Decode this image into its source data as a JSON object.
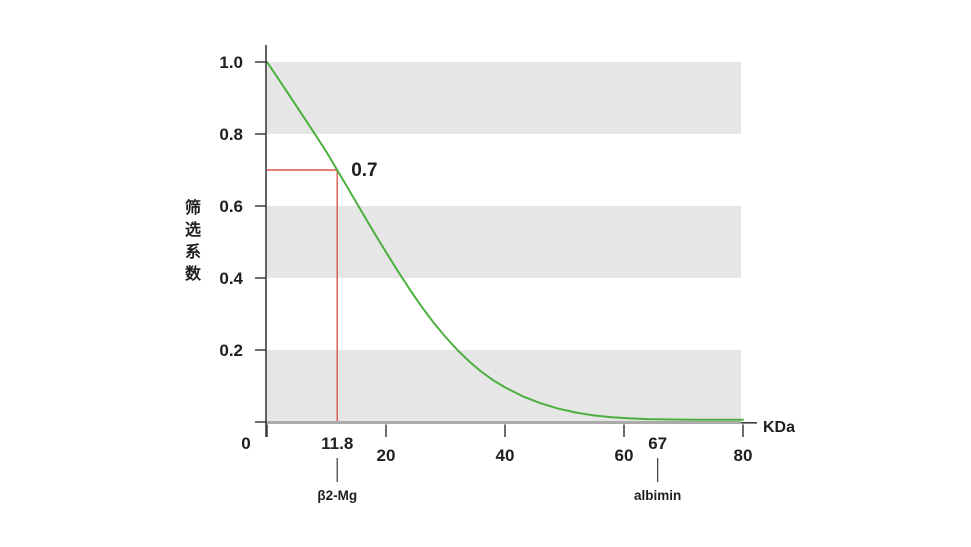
{
  "figure": {
    "background": "#ffffff"
  },
  "chart_data": {
    "type": "line",
    "title": "",
    "xlabel": "KDa",
    "ylabel": "筛选系数",
    "xlim": [
      0,
      80
    ],
    "ylim": [
      0,
      1.0
    ],
    "grid": "off",
    "legend": "none",
    "background_bands": {
      "color": "#e6e6e6",
      "ranges": [
        [
          0.8,
          1.0
        ],
        [
          0.4,
          0.6
        ],
        [
          0.0,
          0.2
        ]
      ]
    },
    "y_axis": {
      "ticks": [
        {
          "value": 1.0,
          "label": "1.0"
        },
        {
          "value": 0.8,
          "label": "0.8"
        },
        {
          "value": 0.6,
          "label": "0.6"
        },
        {
          "value": 0.4,
          "label": "0.4"
        },
        {
          "value": 0.2,
          "label": "0.2"
        },
        {
          "value": 0.0,
          "label": ""
        }
      ]
    },
    "x_axis": {
      "unit_label": "KDa",
      "ticks": [
        {
          "value": 0,
          "label": "0",
          "row": 1,
          "dx": -21,
          "tick": true
        },
        {
          "value": 11.8,
          "label": "11.8",
          "row": 1,
          "dx": 0,
          "tick": false
        },
        {
          "value": 20,
          "label": "20",
          "row": 2,
          "dx": 0,
          "tick": true
        },
        {
          "value": 40,
          "label": "40",
          "row": 2,
          "dx": 0,
          "tick": true
        },
        {
          "value": 60,
          "label": "60",
          "row": 2,
          "dx": 0,
          "tick": true
        },
        {
          "value": 67,
          "label": "67",
          "row": 1,
          "dx": -8,
          "tick": false
        },
        {
          "value": 80,
          "label": "80",
          "row": 2,
          "dx": 0,
          "tick": true
        }
      ]
    },
    "series": [
      {
        "name": "sieving-coefficient-curve",
        "color": "#4caf3f",
        "points": [
          [
            0,
            1.0
          ],
          [
            2,
            0.951
          ],
          [
            4,
            0.901
          ],
          [
            6,
            0.851
          ],
          [
            8,
            0.801
          ],
          [
            10,
            0.75
          ],
          [
            11.8,
            0.7
          ],
          [
            14,
            0.638
          ],
          [
            16,
            0.582
          ],
          [
            18,
            0.526
          ],
          [
            20,
            0.472
          ],
          [
            22,
            0.419
          ],
          [
            24,
            0.368
          ],
          [
            26,
            0.32
          ],
          [
            28,
            0.276
          ],
          [
            30,
            0.236
          ],
          [
            32,
            0.2
          ],
          [
            34,
            0.168
          ],
          [
            36,
            0.14
          ],
          [
            38,
            0.116
          ],
          [
            40,
            0.096
          ],
          [
            43,
            0.071
          ],
          [
            46,
            0.052
          ],
          [
            49,
            0.037
          ],
          [
            52,
            0.026
          ],
          [
            55,
            0.018
          ],
          [
            58,
            0.013
          ],
          [
            61,
            0.01
          ],
          [
            64,
            0.008
          ],
          [
            68,
            0.007
          ],
          [
            72,
            0.006
          ],
          [
            76,
            0.006
          ],
          [
            80,
            0.006
          ]
        ]
      }
    ],
    "reference": {
      "x": 11.8,
      "y": 0.7,
      "label": "0.7",
      "line_color": "#db564b",
      "text_color": "#1c4f9c"
    },
    "markers": [
      {
        "x": 11.8,
        "label": "β2-Mg",
        "dx": 0
      },
      {
        "x": 67,
        "label": "albimin",
        "dx": -8
      }
    ],
    "style": {
      "band": "#e6e6e6",
      "baseline": "#ababab",
      "axis": "#3a3a3a",
      "text": "#1f1f1f",
      "curve": "#4caf3f"
    }
  }
}
